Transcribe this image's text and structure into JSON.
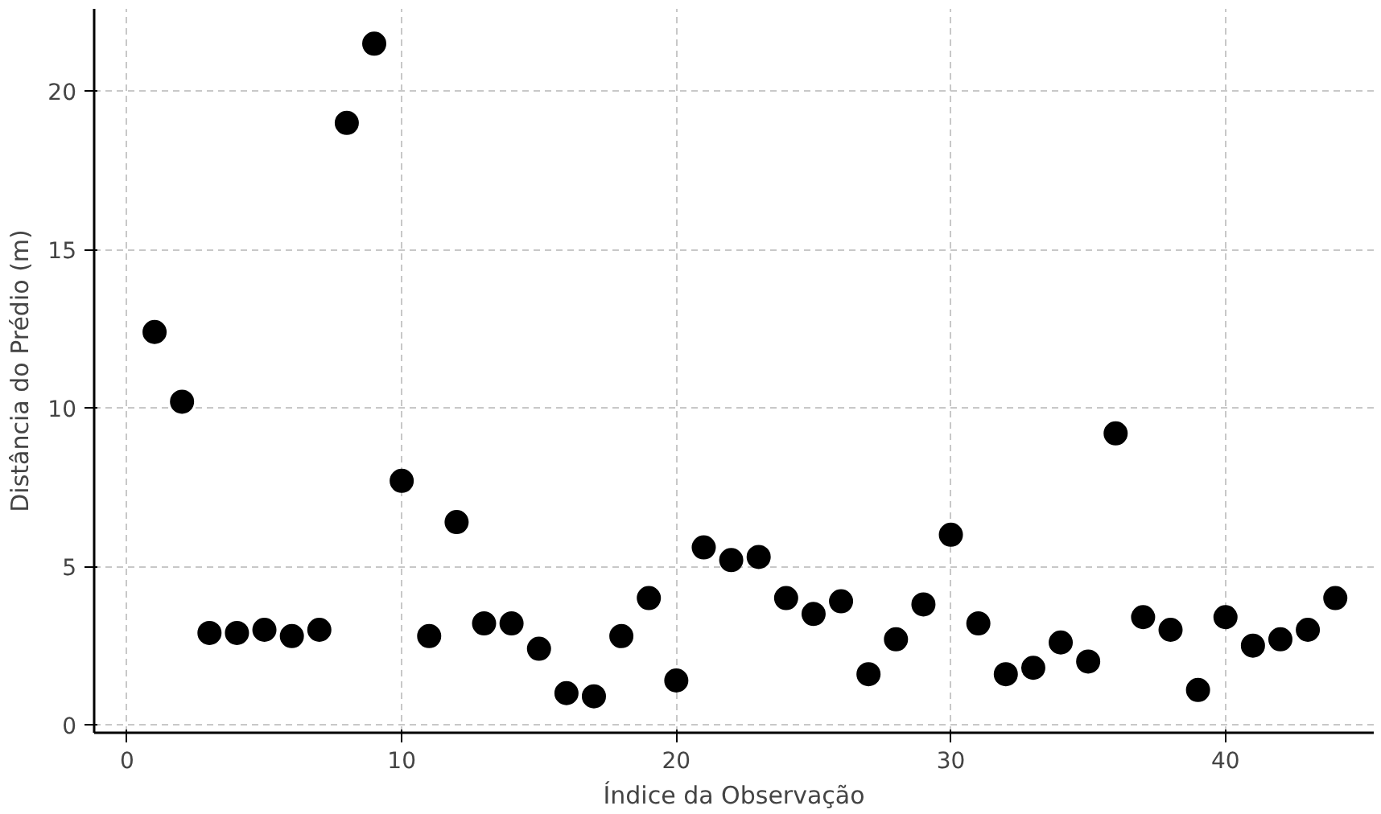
{
  "chart_data": {
    "type": "scatter",
    "xlabel": "Índice da Observação",
    "ylabel": "Distância do Prédio (m)",
    "x": [
      1,
      2,
      3,
      4,
      5,
      6,
      7,
      8,
      9,
      10,
      11,
      12,
      13,
      14,
      15,
      16,
      17,
      18,
      19,
      20,
      21,
      22,
      23,
      24,
      25,
      26,
      27,
      28,
      29,
      30,
      31,
      32,
      33,
      34,
      35,
      36,
      37,
      38,
      39,
      40,
      41,
      42,
      43,
      44
    ],
    "series": [
      {
        "color": "#000000",
        "values": [
          12.4,
          10.2,
          2.9,
          2.9,
          3.0,
          2.8,
          3.0,
          19.0,
          21.5,
          7.7,
          2.8,
          6.4,
          3.2,
          3.2,
          2.4,
          1.0,
          0.9,
          2.8,
          4.0,
          1.4,
          5.6,
          5.2,
          5.3,
          4.0,
          3.5,
          3.9,
          1.6,
          2.7,
          3.8,
          6.0,
          3.2,
          1.6,
          1.8,
          2.6,
          2.0,
          9.2,
          3.4,
          3.0,
          1.1,
          3.4,
          2.5,
          2.7,
          3.0,
          4.0
        ]
      }
    ],
    "xlim": [
      -1.2,
      45.4
    ],
    "ylim": [
      -0.25,
      22.6
    ],
    "xticks": [
      0,
      10,
      20,
      30,
      40
    ],
    "yticks": [
      0,
      5,
      10,
      15,
      20
    ],
    "grid": true,
    "marker": "circle"
  }
}
